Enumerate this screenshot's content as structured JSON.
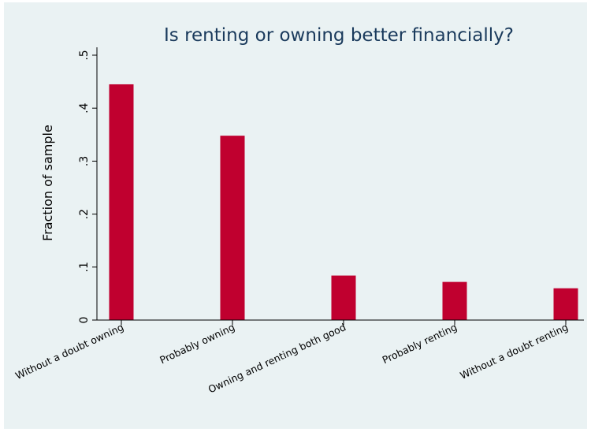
{
  "chart_data": {
    "type": "bar",
    "title": "Is renting or owning better financially?",
    "xlabel": "",
    "ylabel": "Fraction of sample",
    "categories": [
      "Without a doubt owning",
      "Probably owning",
      "Owning and renting both good",
      "Probably renting",
      "Without a doubt renting"
    ],
    "values": [
      0.445,
      0.348,
      0.084,
      0.072,
      0.06
    ],
    "ylim": [
      0,
      0.5
    ],
    "yticks": [
      0,
      0.1,
      0.2,
      0.3,
      0.4,
      0.5
    ],
    "ytick_labels": [
      "0",
      ".1",
      ".2",
      ".3",
      ".4",
      ".5"
    ],
    "bar_color": "#c0002f",
    "background_color": "#eaf2f3",
    "title_color": "#1a3a5c",
    "grid": false,
    "legend": "none"
  }
}
